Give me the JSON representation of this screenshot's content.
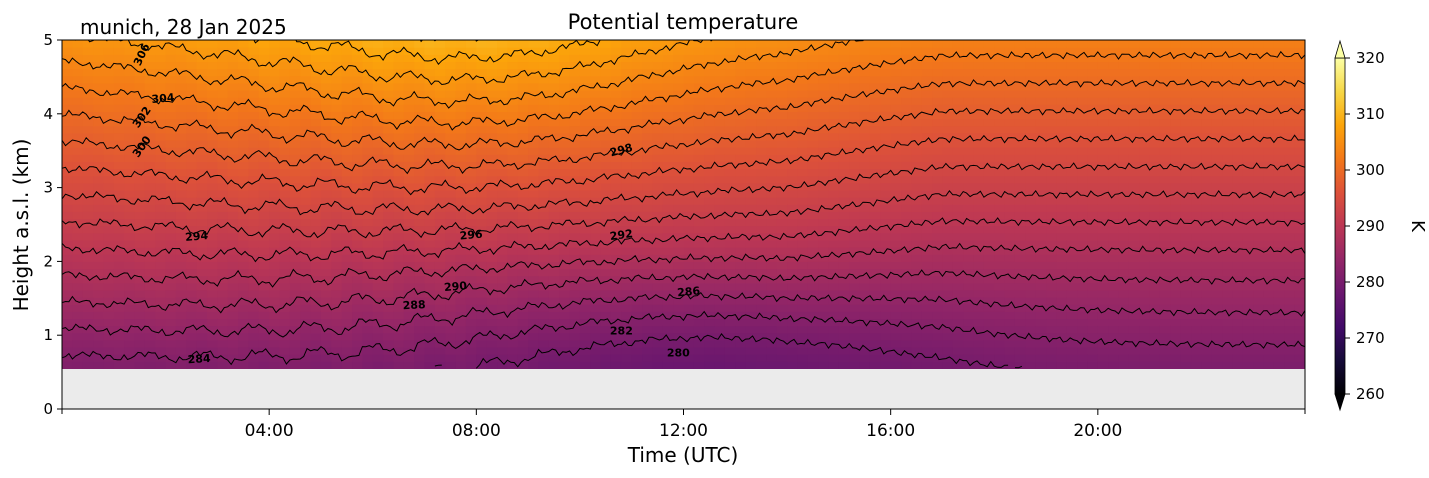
{
  "chart_data": {
    "type": "heatmap",
    "title": "Potential temperature",
    "subtitle": "munich, 28 Jan 2025",
    "xlabel": "Time (UTC)",
    "ylabel": "Height a.s.l. (km)",
    "x_ticks": [
      "04:00",
      "08:00",
      "12:00",
      "16:00",
      "20:00"
    ],
    "x_tick_hours": [
      4,
      8,
      12,
      16,
      20
    ],
    "xlim_hours": [
      0,
      24
    ],
    "ylim": [
      0,
      5
    ],
    "y_ticks": [
      "0",
      "1",
      "2",
      "3",
      "4",
      "5"
    ],
    "data_height_range_km": [
      0.55,
      5
    ],
    "colorbar": {
      "label": "K",
      "range": [
        260,
        320
      ],
      "ticks": [
        "260",
        "270",
        "280",
        "290",
        "300",
        "310",
        "320"
      ],
      "colormap": "inferno",
      "extend": "both"
    },
    "contour_interval": 2,
    "contour_labels": [
      {
        "value": "306",
        "time_h": 1.55,
        "height_km": 4.8,
        "angle": -65
      },
      {
        "value": "304",
        "time_h": 1.95,
        "height_km": 4.2,
        "angle": -5
      },
      {
        "value": "302",
        "time_h": 1.55,
        "height_km": 3.95,
        "angle": -55
      },
      {
        "value": "300",
        "time_h": 1.55,
        "height_km": 3.55,
        "angle": -55
      },
      {
        "value": "298",
        "time_h": 10.8,
        "height_km": 3.5,
        "angle": -15
      },
      {
        "value": "296",
        "time_h": 7.9,
        "height_km": 2.35,
        "angle": -5
      },
      {
        "value": "294",
        "time_h": 2.6,
        "height_km": 2.33,
        "angle": -5
      },
      {
        "value": "292",
        "time_h": 10.8,
        "height_km": 2.35,
        "angle": -8
      },
      {
        "value": "290",
        "time_h": 7.6,
        "height_km": 1.65,
        "angle": -5
      },
      {
        "value": "288",
        "time_h": 6.8,
        "height_km": 1.4,
        "angle": -3
      },
      {
        "value": "286",
        "time_h": 12.1,
        "height_km": 1.58,
        "angle": -5
      },
      {
        "value": "284",
        "time_h": 2.65,
        "height_km": 0.67,
        "angle": -3
      },
      {
        "value": "282",
        "time_h": 10.8,
        "height_km": 1.05,
        "angle": 0
      },
      {
        "value": "280",
        "time_h": 11.9,
        "height_km": 0.75,
        "angle": 0
      }
    ]
  }
}
